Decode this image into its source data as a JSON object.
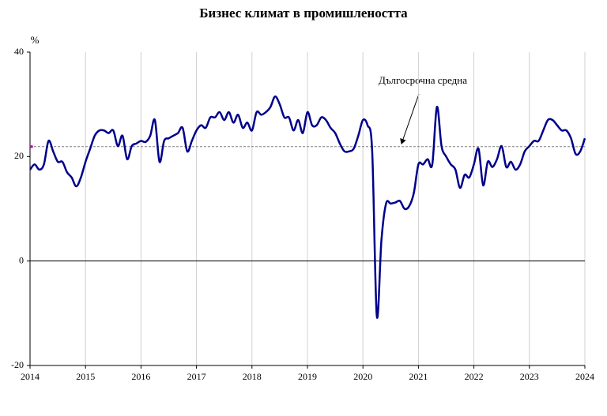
{
  "chart_data": {
    "type": "line",
    "title": "Бизнес климат в промишлеността",
    "y_label": "%",
    "annotation": "Дългосрочна средна",
    "long_term_average": 21.9,
    "average_color": "#808080",
    "average_marker_color": "#cc00cc",
    "categories": [
      "2014",
      null,
      null,
      null,
      null,
      null,
      null,
      null,
      null,
      null,
      null,
      null,
      "2015",
      null,
      null,
      null,
      null,
      null,
      null,
      null,
      null,
      null,
      null,
      null,
      "2016",
      null,
      null,
      null,
      null,
      null,
      null,
      null,
      null,
      null,
      null,
      null,
      "2017",
      null,
      null,
      null,
      null,
      null,
      null,
      null,
      null,
      null,
      null,
      null,
      "2018",
      null,
      null,
      null,
      null,
      null,
      null,
      null,
      null,
      null,
      null,
      null,
      "2019",
      null,
      null,
      null,
      null,
      null,
      null,
      null,
      null,
      null,
      null,
      null,
      "2020",
      null,
      null,
      null,
      null,
      null,
      null,
      null,
      null,
      null,
      null,
      null,
      "2021",
      null,
      null,
      null,
      null,
      null,
      null,
      null,
      null,
      null,
      null,
      null,
      "2022",
      null,
      null,
      null,
      null,
      null,
      null,
      null,
      null,
      null,
      null,
      null,
      "2023",
      null,
      null,
      null,
      null,
      null,
      null,
      null,
      null,
      null,
      null,
      null,
      "2024"
    ],
    "series": [
      {
        "color": "#00008b",
        "values": [
          17.5,
          18.5,
          17.5,
          18.5,
          23,
          21,
          19,
          19,
          17,
          16,
          14.3,
          16,
          19,
          21.5,
          24,
          25,
          25,
          24.5,
          25,
          22,
          24,
          19.5,
          22,
          22.5,
          23,
          22.8,
          24,
          27,
          19,
          23,
          23.5,
          24,
          24.5,
          25.5,
          21,
          23,
          25,
          26,
          25.5,
          27.5,
          27.5,
          28.5,
          27,
          28.5,
          26.5,
          28,
          25.5,
          26.5,
          25,
          28.5,
          28,
          28.5,
          29.5,
          31.5,
          30,
          27.5,
          27.5,
          25,
          27,
          24.5,
          28.5,
          26,
          26,
          27.5,
          27,
          25.5,
          24.5,
          22.5,
          21,
          21,
          21.5,
          24,
          27,
          26,
          21,
          -10.5,
          4,
          11,
          11,
          11.2,
          11.5,
          10,
          10.5,
          13,
          18.5,
          18.5,
          19.5,
          18.5,
          29.5,
          22,
          20,
          18.5,
          17.5,
          14,
          16.5,
          16,
          18.5,
          21.5,
          14.5,
          19,
          18,
          19.5,
          22,
          18,
          19,
          17.5,
          18.5,
          21,
          22,
          23,
          23,
          25,
          27,
          27,
          26,
          25,
          25,
          23.5,
          20.5,
          21,
          23.5
        ]
      }
    ],
    "ylim": [
      -20,
      40
    ],
    "yticks": [
      -20,
      0,
      20,
      40
    ],
    "grid": true
  }
}
